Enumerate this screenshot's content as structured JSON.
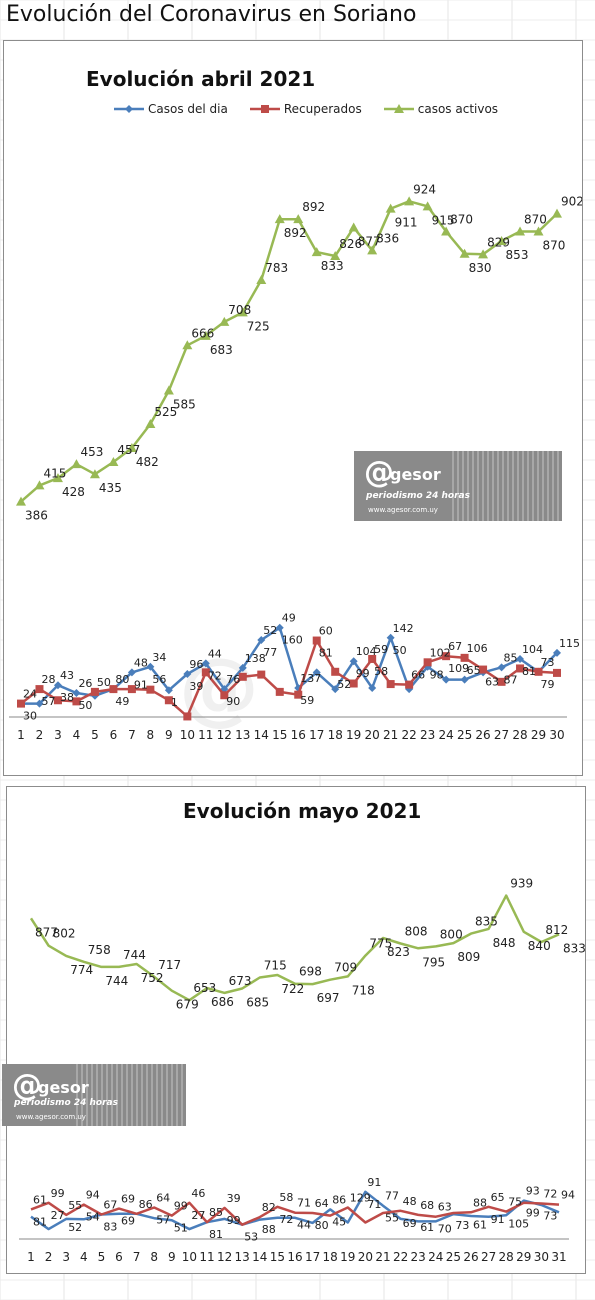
{
  "page_title": "Evolución del Coronavirus en Soriano",
  "watermark": {
    "at": "@",
    "brand": "gesor",
    "tagline": "periodismo 24 horas",
    "url": "www.agesor.com.uy"
  },
  "colors": {
    "casos": "#4a7ebb",
    "recuperados": "#be4b48",
    "activos": "#98b954"
  },
  "chart_data": [
    {
      "type": "line",
      "title": "Evolución abril 2021",
      "legend_position": "top",
      "categories": [
        1,
        2,
        3,
        4,
        5,
        6,
        7,
        8,
        9,
        10,
        11,
        12,
        13,
        14,
        15,
        16,
        17,
        18,
        19,
        20,
        21,
        22,
        23,
        24,
        25,
        26,
        27,
        28,
        29,
        30
      ],
      "ylim": [
        0,
        1050
      ],
      "grid": false,
      "series": [
        {
          "name": "Casos del dia",
          "marker": "diamond",
          "values": [
            24,
            24,
            57,
            43,
            38,
            50,
            80,
            90,
            48,
            77,
            96,
            50,
            88,
            138,
            160,
            52,
            80,
            50,
            100,
            52,
            142,
            50,
            90,
            67,
            67,
            80,
            89,
            104,
            81,
            115
          ]
        },
        {
          "name": "Recuperados",
          "marker": "square",
          "values": [
            24,
            50,
            30,
            28,
            45,
            50,
            50,
            49,
            30,
            1,
            80,
            39,
            72,
            76,
            45,
            40,
            137,
            81,
            60,
            104,
            59,
            58,
            98,
            109,
            106,
            85,
            63,
            87,
            81,
            79
          ]
        },
        {
          "name": "casos activos",
          "marker": "triangle",
          "values": [
            386,
            415,
            428,
            453,
            435,
            457,
            482,
            525,
            585,
            666,
            683,
            708,
            725,
            783,
            892,
            892,
            833,
            826,
            877,
            836,
            911,
            924,
            915,
            870,
            830,
            829,
            853,
            870,
            870,
            902
          ]
        }
      ],
      "annotations": [
        "386",
        "415",
        "428",
        "453",
        "435",
        "457",
        "482",
        "525",
        "585",
        "666",
        "683",
        "708",
        "725",
        "783",
        "892",
        "892",
        "833",
        "826",
        "877",
        "836",
        "911",
        "924",
        "915",
        "870",
        "830",
        "829",
        "853",
        "870",
        "870",
        "902",
        "24",
        "30",
        "28",
        "57",
        "43",
        "38",
        "26",
        "50",
        "50",
        "49",
        "80",
        "91",
        "48",
        "56",
        "34",
        "1",
        "96",
        "39",
        "44",
        "72",
        "76",
        "90",
        "138",
        "77",
        "52",
        "160",
        "49",
        "59",
        "137",
        "81",
        "60",
        "52",
        "104",
        "99",
        "59",
        "58",
        "142",
        "50",
        "66",
        "98",
        "102",
        "109",
        "67",
        "65",
        "106",
        "63",
        "85",
        "87",
        "104",
        "81",
        "73",
        "79",
        "115"
      ]
    },
    {
      "type": "line",
      "title": "Evolución mayo 2021",
      "categories": [
        1,
        2,
        3,
        4,
        5,
        6,
        7,
        8,
        9,
        10,
        11,
        12,
        13,
        14,
        15,
        16,
        17,
        18,
        19,
        20,
        21,
        22,
        23,
        24,
        25,
        26,
        27,
        28,
        29,
        30,
        31
      ],
      "ylim": [
        0,
        1050
      ],
      "grid": false,
      "series": [
        {
          "name": "Casos del dia",
          "marker": "none",
          "values": [
            61,
            27,
            55,
            54,
            67,
            69,
            69,
            57,
            51,
            27,
            46,
            55,
            39,
            53,
            58,
            58,
            44,
            81,
            45,
            129,
            91,
            55,
            48,
            48,
            68,
            63,
            61,
            65,
            105,
            93,
            73
          ]
        },
        {
          "name": "Recuperados",
          "marker": "none",
          "values": [
            81,
            99,
            66,
            94,
            67,
            83,
            69,
            86,
            64,
            99,
            46,
            85,
            39,
            60,
            88,
            72,
            71,
            64,
            86,
            45,
            71,
            77,
            66,
            61,
            71,
            73,
            88,
            75,
            99,
            97,
            94
          ]
        },
        {
          "name": "casos activos",
          "marker": "none",
          "values": [
            877,
            802,
            774,
            758,
            744,
            744,
            752,
            717,
            679,
            653,
            686,
            673,
            685,
            715,
            722,
            698,
            697,
            709,
            718,
            775,
            823,
            808,
            795,
            800,
            809,
            835,
            848,
            939,
            840,
            812,
            833
          ]
        }
      ],
      "annotations": [
        "877",
        "802",
        "774",
        "758",
        "744",
        "744",
        "752",
        "717",
        "679",
        "653",
        "686",
        "673",
        "685",
        "715",
        "722",
        "698",
        "697",
        "709",
        "718",
        "775",
        "823",
        "808",
        "795",
        "800",
        "809",
        "835",
        "848",
        "939",
        "840",
        "812",
        "833",
        "61",
        "81",
        "99",
        "27",
        "55",
        "52",
        "94",
        "54",
        "67",
        "83",
        "69",
        "69",
        "86",
        "57",
        "64",
        "51",
        "99",
        "27",
        "46",
        "81",
        "85",
        "99",
        "39",
        "53",
        "82",
        "88",
        "58",
        "72",
        "71",
        "44",
        "64",
        "80",
        "86",
        "45",
        "129",
        "71",
        "91",
        "55",
        "77",
        "69",
        "48",
        "61",
        "68",
        "70",
        "63",
        "73",
        "88",
        "61",
        "65",
        "91",
        "75",
        "105",
        "93",
        "99",
        "72",
        "73",
        "94"
      ]
    }
  ]
}
